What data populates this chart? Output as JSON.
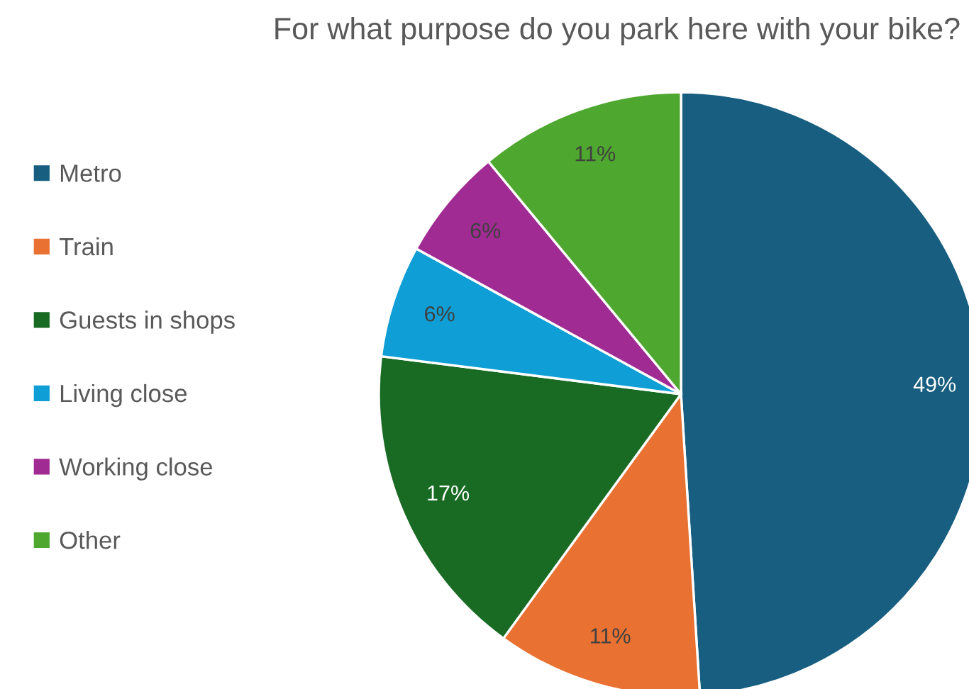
{
  "chart_data": {
    "type": "pie",
    "title": "For what purpose do you park here with your bike?",
    "categories": [
      "Metro",
      "Train",
      "Guests in shops",
      "Living close",
      "Working close",
      "Other"
    ],
    "values": [
      49,
      11,
      17,
      6,
      6,
      11
    ],
    "value_labels": [
      "49%",
      "11%",
      "17%",
      "6%",
      "6%",
      "11%"
    ],
    "colors": [
      "#175e80",
      "#e97132",
      "#196b24",
      "#0f9ed5",
      "#a02b93",
      "#4ea72e"
    ],
    "legend": "left"
  }
}
